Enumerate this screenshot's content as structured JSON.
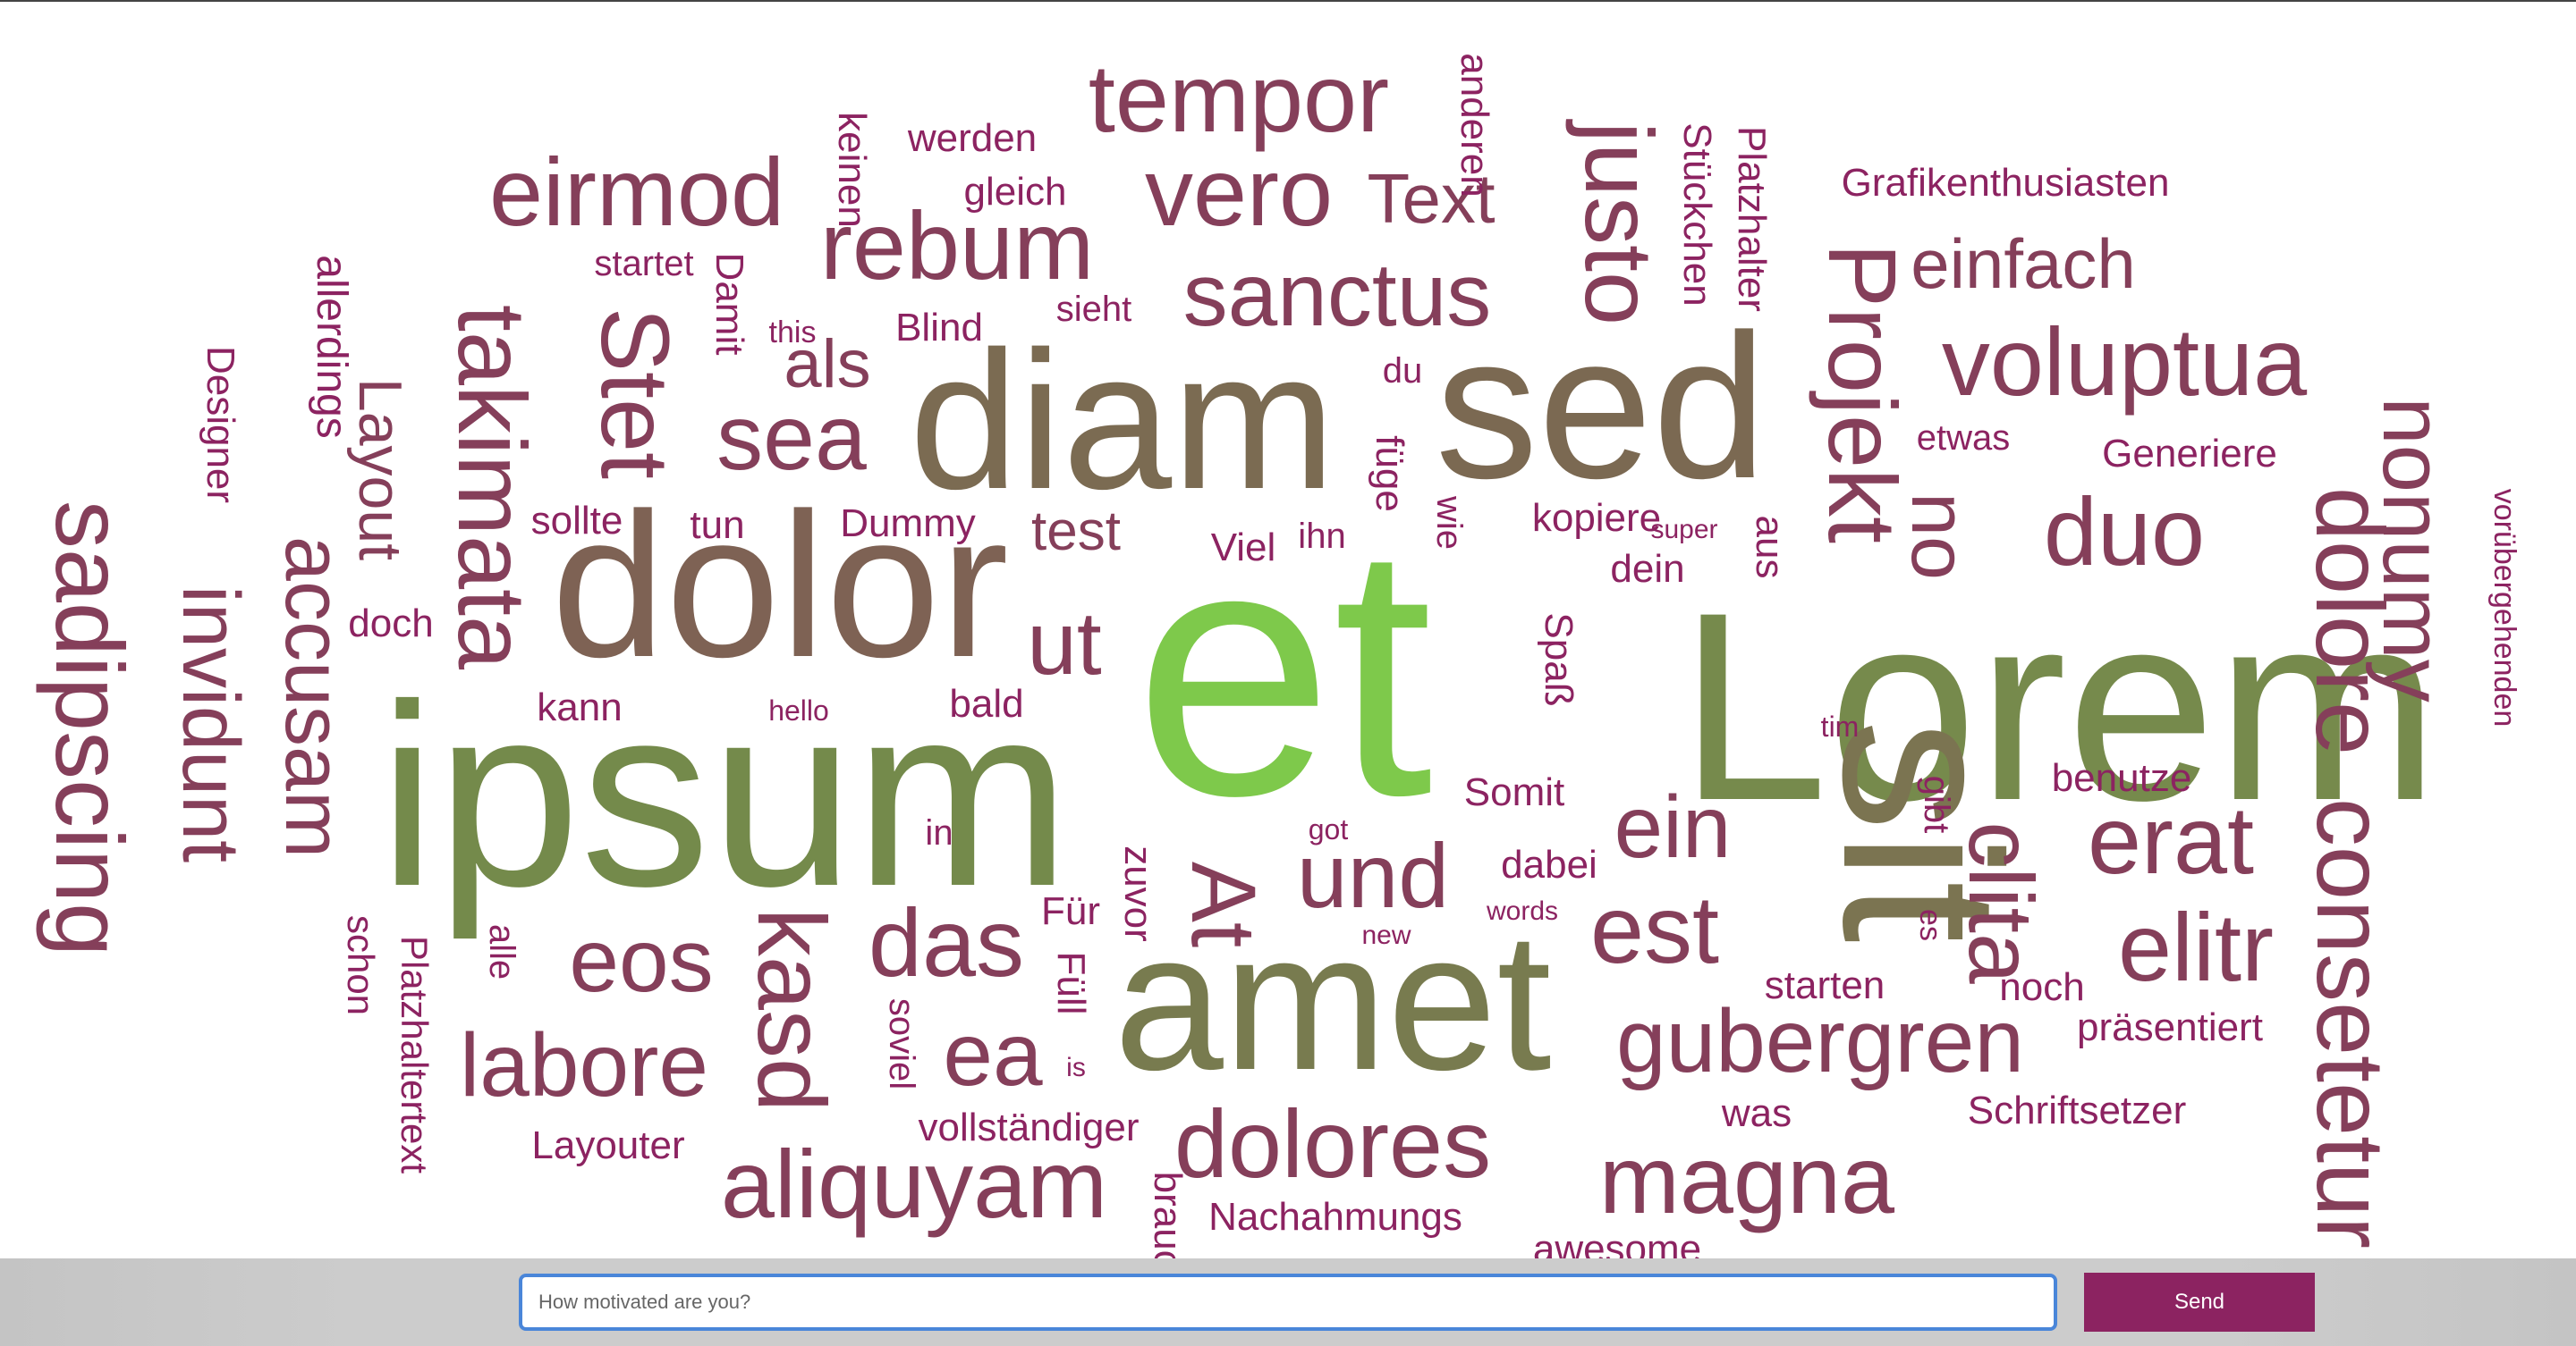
{
  "words": [
    {
      "text": "et",
      "color": "#7ec94b"
    },
    {
      "text": "Lorem",
      "color": "#768a4c"
    },
    {
      "text": "ipsum",
      "color": "#748a4b"
    },
    {
      "text": "amet",
      "color": "#787b4f"
    },
    {
      "text": "sit",
      "color": "#7b7451"
    },
    {
      "text": "diam",
      "color": "#7b6b52"
    },
    {
      "text": "sed",
      "color": "#7b6952"
    },
    {
      "text": "dolor",
      "color": "#7e6254"
    },
    {
      "text": "sadipscing",
      "color": "#853f5a"
    },
    {
      "text": "invidunt",
      "color": "#853f5a"
    },
    {
      "text": "accusam",
      "color": "#853f5a"
    },
    {
      "text": "Layout",
      "color": "#853f5a"
    },
    {
      "text": "takimata",
      "color": "#853f5a"
    },
    {
      "text": "Stet",
      "color": "#853f5a"
    },
    {
      "text": "eirmod",
      "color": "#853f5a"
    },
    {
      "text": "rebum",
      "color": "#853f5a"
    },
    {
      "text": "tempor",
      "color": "#853f5a"
    },
    {
      "text": "vero",
      "color": "#853f5a"
    },
    {
      "text": "Text",
      "color": "#853f5a"
    },
    {
      "text": "sanctus",
      "color": "#853f5a"
    },
    {
      "text": "justo",
      "color": "#853f5a"
    },
    {
      "text": "Projekt",
      "color": "#853f5a"
    },
    {
      "text": "einfach",
      "color": "#853f5a"
    },
    {
      "text": "voluptua",
      "color": "#853f5a"
    },
    {
      "text": "nonumy",
      "color": "#853f5a"
    },
    {
      "text": "duo",
      "color": "#853f5a"
    },
    {
      "text": "no",
      "color": "#853f5a"
    },
    {
      "text": "dolore",
      "color": "#853f5a"
    },
    {
      "text": "consetetur",
      "color": "#853f5a"
    },
    {
      "text": "erat",
      "color": "#853f5a"
    },
    {
      "text": "elitr",
      "color": "#853f5a"
    },
    {
      "text": "clita",
      "color": "#853f5a"
    },
    {
      "text": "ein",
      "color": "#853f5a"
    },
    {
      "text": "est",
      "color": "#853f5a"
    },
    {
      "text": "gubergren",
      "color": "#853f5a"
    },
    {
      "text": "magna",
      "color": "#853f5a"
    },
    {
      "text": "dolores",
      "color": "#853f5a"
    },
    {
      "text": "und",
      "color": "#853f5a"
    },
    {
      "text": "At",
      "color": "#853f5a"
    },
    {
      "text": "aliquyam",
      "color": "#853f5a"
    },
    {
      "text": "labore",
      "color": "#853f5a"
    },
    {
      "text": "eos",
      "color": "#853f5a"
    },
    {
      "text": "kasd",
      "color": "#853f5a"
    },
    {
      "text": "das",
      "color": "#853f5a"
    },
    {
      "text": "ea",
      "color": "#853f5a"
    },
    {
      "text": "ut",
      "color": "#853f5a"
    },
    {
      "text": "sea",
      "color": "#853f5a"
    },
    {
      "text": "als",
      "color": "#853f5a"
    },
    {
      "text": "test",
      "color": "#853f5a"
    },
    {
      "text": "werden",
      "color": "#8c2361"
    },
    {
      "text": "gleich",
      "color": "#8c2361"
    },
    {
      "text": "keinen",
      "color": "#8c2361"
    },
    {
      "text": "startet",
      "color": "#8c2361"
    },
    {
      "text": "Damit",
      "color": "#8c2361"
    },
    {
      "text": "this",
      "color": "#8c2361"
    },
    {
      "text": "Blind",
      "color": "#8c2361"
    },
    {
      "text": "sieht",
      "color": "#8c2361"
    },
    {
      "text": "allerdings",
      "color": "#8c2361"
    },
    {
      "text": "Designer",
      "color": "#8c2361"
    },
    {
      "text": "sollte",
      "color": "#8c2361"
    },
    {
      "text": "tun",
      "color": "#8c2361"
    },
    {
      "text": "Dummy",
      "color": "#8c2361"
    },
    {
      "text": "doch",
      "color": "#8c2361"
    },
    {
      "text": "kann",
      "color": "#8c2361"
    },
    {
      "text": "hello",
      "color": "#8c2361"
    },
    {
      "text": "bald",
      "color": "#8c2361"
    },
    {
      "text": "in",
      "color": "#8c2361"
    },
    {
      "text": "schon",
      "color": "#8c2361"
    },
    {
      "text": "alle",
      "color": "#8c2361"
    },
    {
      "text": "Platzhaltertext",
      "color": "#8c2361"
    },
    {
      "text": "Layouter",
      "color": "#8c2361"
    },
    {
      "text": "soviel",
      "color": "#8c2361"
    },
    {
      "text": "vollständiger",
      "color": "#8c2361"
    },
    {
      "text": "Für",
      "color": "#8c2361"
    },
    {
      "text": "Füll",
      "color": "#8c2361"
    },
    {
      "text": "is",
      "color": "#8c2361"
    },
    {
      "text": "zuvor",
      "color": "#8c2361"
    },
    {
      "text": "brauchst",
      "color": "#8c2361"
    },
    {
      "text": "Nachahmungs",
      "color": "#8c2361"
    },
    {
      "text": "anderen",
      "color": "#8c2361"
    },
    {
      "text": "du",
      "color": "#8c2361"
    },
    {
      "text": "füge",
      "color": "#8c2361"
    },
    {
      "text": "Viel",
      "color": "#8c2361"
    },
    {
      "text": "ihn",
      "color": "#8c2361"
    },
    {
      "text": "wie",
      "color": "#8c2361"
    },
    {
      "text": "kopiere",
      "color": "#8c2361"
    },
    {
      "text": "super",
      "color": "#8c2361"
    },
    {
      "text": "aus",
      "color": "#8c2361"
    },
    {
      "text": "dein",
      "color": "#8c2361"
    },
    {
      "text": "Spaß",
      "color": "#8c2361"
    },
    {
      "text": "Somit",
      "color": "#8c2361"
    },
    {
      "text": "got",
      "color": "#8c2361"
    },
    {
      "text": "dabei",
      "color": "#8c2361"
    },
    {
      "text": "words",
      "color": "#8c2361"
    },
    {
      "text": "new",
      "color": "#8c2361"
    },
    {
      "text": "Stückchen",
      "color": "#8c2361"
    },
    {
      "text": "Platzhalter",
      "color": "#8c2361"
    },
    {
      "text": "Grafikenthusiasten",
      "color": "#8c2361"
    },
    {
      "text": "etwas",
      "color": "#8c2361"
    },
    {
      "text": "Generiere",
      "color": "#8c2361"
    },
    {
      "text": "tim",
      "color": "#8c2361"
    },
    {
      "text": "gibt",
      "color": "#8c2361"
    },
    {
      "text": "es",
      "color": "#8c2361"
    },
    {
      "text": "benutze",
      "color": "#8c2361"
    },
    {
      "text": "vorübergehenden",
      "color": "#8c2361"
    },
    {
      "text": "starten",
      "color": "#8c2361"
    },
    {
      "text": "noch",
      "color": "#8c2361"
    },
    {
      "text": "präsentiert",
      "color": "#8c2361"
    },
    {
      "text": "was",
      "color": "#8c2361"
    },
    {
      "text": "Schriftsetzer",
      "color": "#8c2361"
    },
    {
      "text": "awesome",
      "color": "#8c2361"
    }
  ],
  "input": {
    "placeholder": "How motivated are you?",
    "value": ""
  },
  "send_label": "Send"
}
